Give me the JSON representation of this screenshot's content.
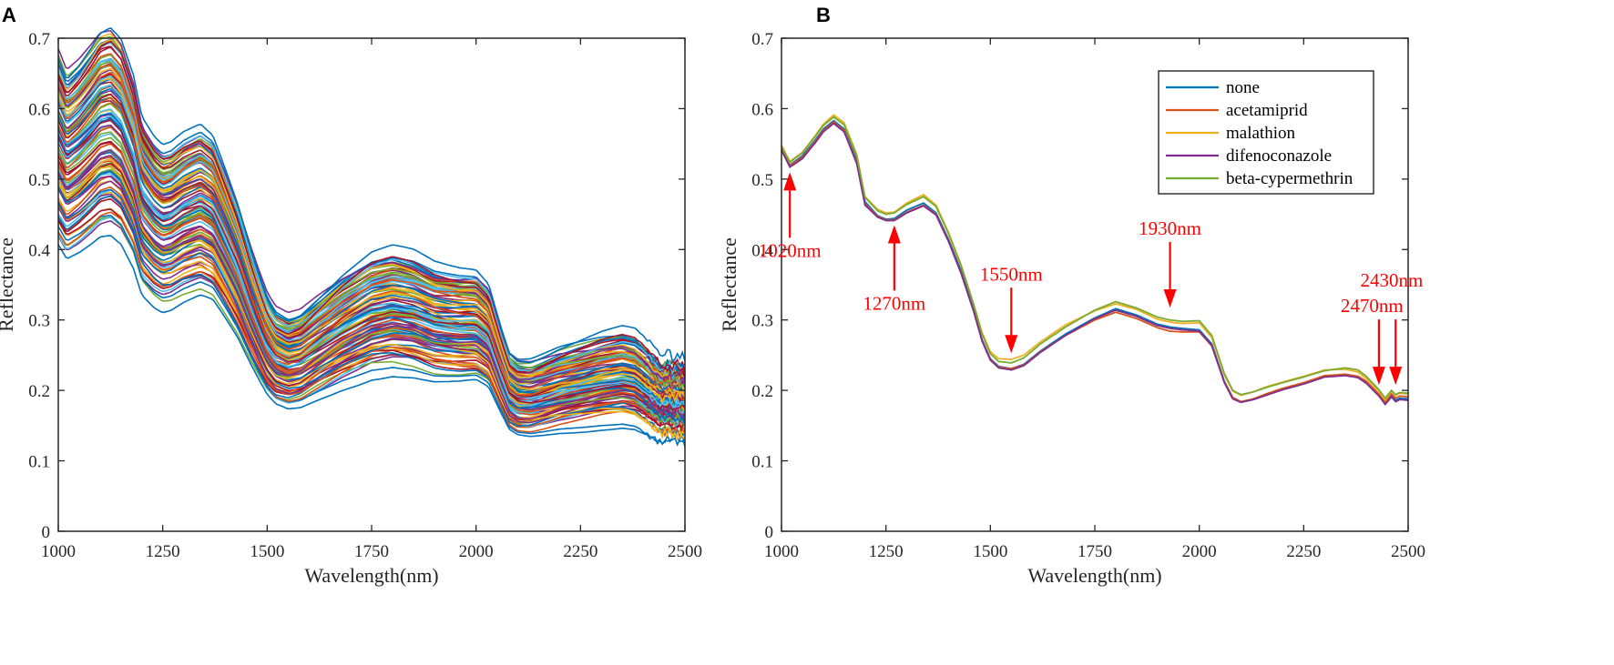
{
  "chart_data": [
    {
      "type": "line",
      "panel_label": "A",
      "title": "",
      "xlabel": "Wavelength(nm)",
      "ylabel": "Reflectance",
      "xlim": [
        1000,
        2500
      ],
      "ylim": [
        0,
        0.7
      ],
      "xticks": [
        1000,
        1250,
        1500,
        1750,
        2000,
        2250,
        2500
      ],
      "yticks": [
        0,
        0.1,
        0.2,
        0.3,
        0.4,
        0.5,
        0.6,
        0.7
      ],
      "xtick_labels": [
        "1000",
        "1250",
        "1500",
        "1750",
        "2000",
        "2250",
        "2500"
      ],
      "ytick_labels": [
        "0",
        "0.1",
        "0.2",
        "0.3",
        "0.4",
        "0.5",
        "0.6",
        "0.7"
      ],
      "grid": false,
      "n_series": 120,
      "reference_spectrum": {
        "wavelength": [
          1000,
          1020,
          1050,
          1080,
          1100,
          1125,
          1150,
          1180,
          1200,
          1230,
          1250,
          1270,
          1300,
          1340,
          1370,
          1400,
          1430,
          1460,
          1480,
          1500,
          1520,
          1550,
          1580,
          1620,
          1680,
          1750,
          1800,
          1850,
          1900,
          1930,
          1960,
          2000,
          2030,
          2060,
          2080,
          2100,
          2130,
          2160,
          2200,
          2250,
          2300,
          2350,
          2380,
          2400,
          2430,
          2445,
          2460,
          2470,
          2480,
          2500
        ],
        "reflectance": [
          0.56,
          0.535,
          0.55,
          0.57,
          0.585,
          0.59,
          0.575,
          0.53,
          0.48,
          0.455,
          0.445,
          0.448,
          0.46,
          0.47,
          0.458,
          0.42,
          0.38,
          0.33,
          0.3,
          0.272,
          0.255,
          0.247,
          0.252,
          0.27,
          0.295,
          0.318,
          0.324,
          0.318,
          0.305,
          0.302,
          0.3,
          0.3,
          0.285,
          0.235,
          0.205,
          0.196,
          0.195,
          0.2,
          0.208,
          0.215,
          0.222,
          0.226,
          0.222,
          0.213,
          0.198,
          0.19,
          0.196,
          0.189,
          0.192,
          0.188
        ]
      },
      "series_palette": [
        "#0072bd",
        "#d95319",
        "#edb120",
        "#7e2f8e",
        "#77ac30",
        "#4dbeee",
        "#a2142f"
      ]
    },
    {
      "type": "line",
      "panel_label": "B",
      "title": "",
      "xlabel": "Wavelength(nm)",
      "ylabel": "Reflectance",
      "xlim": [
        1000,
        2500
      ],
      "ylim": [
        0,
        0.7
      ],
      "xticks": [
        1000,
        1250,
        1500,
        1750,
        2000,
        2250,
        2500
      ],
      "yticks": [
        0,
        0.1,
        0.2,
        0.3,
        0.4,
        0.5,
        0.6,
        0.7
      ],
      "xtick_labels": [
        "1000",
        "1250",
        "1500",
        "1750",
        "2000",
        "2250",
        "2500"
      ],
      "ytick_labels": [
        "0",
        "0.1",
        "0.2",
        "0.3",
        "0.4",
        "0.5",
        "0.6",
        "0.7"
      ],
      "grid": false,
      "legend_position": "top-right",
      "x": [
        1000,
        1020,
        1050,
        1080,
        1100,
        1125,
        1150,
        1180,
        1200,
        1230,
        1250,
        1270,
        1300,
        1340,
        1370,
        1400,
        1430,
        1460,
        1480,
        1500,
        1520,
        1550,
        1580,
        1620,
        1680,
        1750,
        1800,
        1850,
        1900,
        1930,
        1960,
        2000,
        2030,
        2060,
        2080,
        2100,
        2130,
        2160,
        2200,
        2250,
        2300,
        2350,
        2380,
        2400,
        2430,
        2445,
        2460,
        2470,
        2480,
        2500
      ],
      "series": [
        {
          "name": "none",
          "color": "#0072bd",
          "values": [
            0.545,
            0.52,
            0.533,
            0.555,
            0.571,
            0.583,
            0.571,
            0.527,
            0.468,
            0.448,
            0.443,
            0.444,
            0.456,
            0.466,
            0.452,
            0.414,
            0.37,
            0.315,
            0.272,
            0.245,
            0.234,
            0.231,
            0.237,
            0.256,
            0.28,
            0.303,
            0.316,
            0.307,
            0.294,
            0.29,
            0.288,
            0.286,
            0.266,
            0.213,
            0.19,
            0.184,
            0.188,
            0.194,
            0.202,
            0.21,
            0.22,
            0.222,
            0.219,
            0.212,
            0.194,
            0.181,
            0.193,
            0.186,
            0.189,
            0.188
          ]
        },
        {
          "name": "acetamiprid",
          "color": "#d95319",
          "values": [
            0.543,
            0.519,
            0.531,
            0.553,
            0.569,
            0.581,
            0.569,
            0.524,
            0.465,
            0.447,
            0.442,
            0.442,
            0.453,
            0.463,
            0.45,
            0.412,
            0.367,
            0.313,
            0.271,
            0.244,
            0.233,
            0.231,
            0.236,
            0.255,
            0.278,
            0.3,
            0.311,
            0.302,
            0.289,
            0.284,
            0.283,
            0.283,
            0.263,
            0.212,
            0.19,
            0.184,
            0.188,
            0.195,
            0.203,
            0.211,
            0.221,
            0.223,
            0.22,
            0.213,
            0.195,
            0.183,
            0.195,
            0.189,
            0.192,
            0.191
          ]
        },
        {
          "name": "malathion",
          "color": "#edb120",
          "values": [
            0.548,
            0.525,
            0.538,
            0.561,
            0.578,
            0.591,
            0.58,
            0.535,
            0.475,
            0.457,
            0.452,
            0.453,
            0.466,
            0.478,
            0.463,
            0.424,
            0.378,
            0.322,
            0.282,
            0.255,
            0.245,
            0.244,
            0.25,
            0.269,
            0.293,
            0.313,
            0.323,
            0.315,
            0.301,
            0.297,
            0.295,
            0.296,
            0.275,
            0.222,
            0.199,
            0.193,
            0.198,
            0.205,
            0.212,
            0.22,
            0.229,
            0.23,
            0.226,
            0.217,
            0.199,
            0.187,
            0.199,
            0.193,
            0.196,
            0.195
          ]
        },
        {
          "name": "difenoconazole",
          "color": "#7e2f8e",
          "values": [
            0.541,
            0.517,
            0.529,
            0.551,
            0.567,
            0.579,
            0.567,
            0.522,
            0.463,
            0.446,
            0.441,
            0.441,
            0.452,
            0.462,
            0.449,
            0.411,
            0.366,
            0.312,
            0.27,
            0.243,
            0.232,
            0.229,
            0.235,
            0.254,
            0.278,
            0.302,
            0.314,
            0.305,
            0.292,
            0.288,
            0.286,
            0.284,
            0.264,
            0.211,
            0.188,
            0.183,
            0.187,
            0.193,
            0.201,
            0.209,
            0.219,
            0.221,
            0.218,
            0.21,
            0.192,
            0.18,
            0.191,
            0.184,
            0.187,
            0.186
          ]
        },
        {
          "name": "beta-cypermethrin",
          "color": "#77ac30",
          "values": [
            0.546,
            0.524,
            0.537,
            0.56,
            0.576,
            0.588,
            0.577,
            0.533,
            0.474,
            0.455,
            0.45,
            0.452,
            0.464,
            0.475,
            0.461,
            0.422,
            0.377,
            0.322,
            0.28,
            0.252,
            0.241,
            0.239,
            0.246,
            0.266,
            0.29,
            0.314,
            0.326,
            0.317,
            0.304,
            0.3,
            0.298,
            0.299,
            0.278,
            0.224,
            0.2,
            0.194,
            0.198,
            0.204,
            0.211,
            0.219,
            0.228,
            0.232,
            0.229,
            0.22,
            0.201,
            0.189,
            0.2,
            0.194,
            0.197,
            0.196
          ]
        }
      ],
      "annotations": [
        {
          "text": "1020nm",
          "x": 1020,
          "y": 0.52,
          "direction": "up",
          "color": "#ff0000"
        },
        {
          "text": "1270nm",
          "x": 1270,
          "y": 0.445,
          "direction": "up",
          "color": "#ff0000"
        },
        {
          "text": "1550nm",
          "x": 1550,
          "y": 0.245,
          "direction": "down",
          "color": "#ff0000"
        },
        {
          "text": "1930nm",
          "x": 1930,
          "y": 0.31,
          "direction": "down",
          "color": "#ff0000"
        },
        {
          "text": "2430nm",
          "x": 2430,
          "y": 0.2,
          "direction": "down",
          "color": "#ff0000"
        },
        {
          "text": "2470nm",
          "x": 2470,
          "y": 0.2,
          "direction": "down",
          "color": "#ff0000"
        }
      ]
    }
  ]
}
